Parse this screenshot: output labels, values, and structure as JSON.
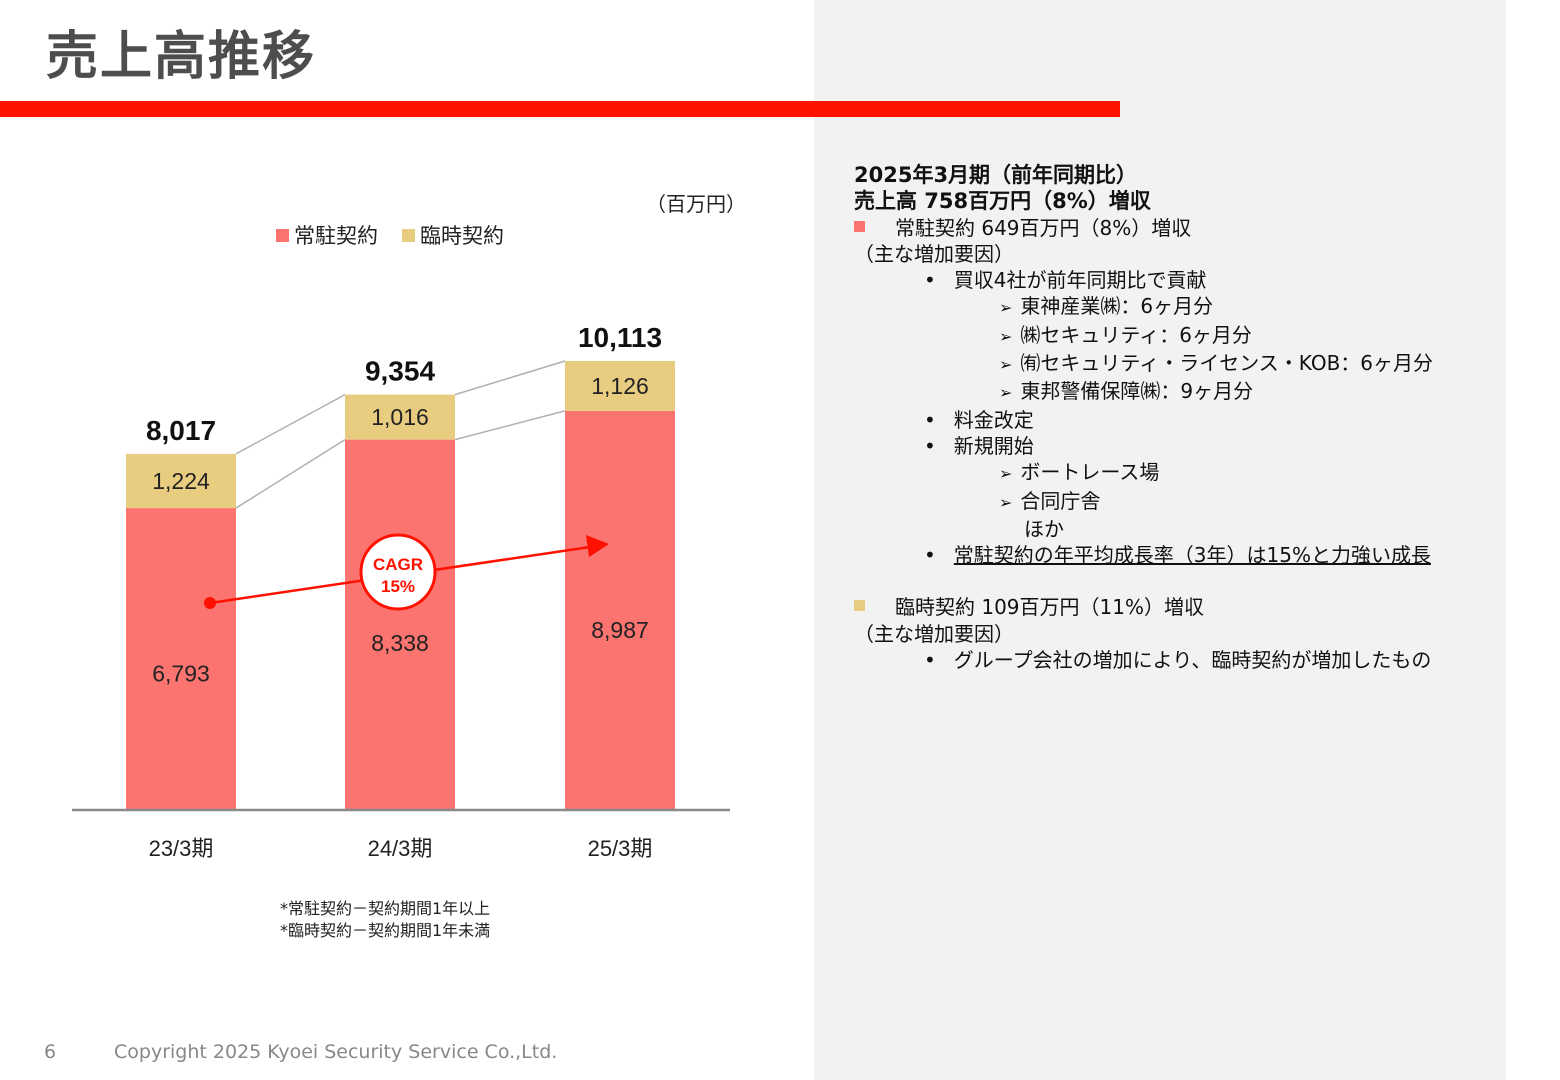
{
  "page": {
    "title": "売上高推移",
    "page_number": "6",
    "copyright": "Copyright 2025 Kyoei Security Service Co.,Ltd."
  },
  "colors": {
    "accent_red": "#ff1100",
    "regular": "#fb7470",
    "temporary": "#e8cc80",
    "panel_bg": "#f2f2f2"
  },
  "chart_data": {
    "type": "bar",
    "stacked": true,
    "unit": "（百万円）",
    "categories": [
      "23/3期",
      "24/3期",
      "25/3期"
    ],
    "series": [
      {
        "name": "常駐契約",
        "values": [
          6793,
          8338,
          8987
        ],
        "labels": [
          "6,793",
          "8,338",
          "8,987"
        ]
      },
      {
        "name": "臨時契約",
        "values": [
          1224,
          1016,
          1126
        ],
        "labels": [
          "1,224",
          "1,016",
          "1,126"
        ]
      }
    ],
    "totals": [
      8017,
      9354,
      10113
    ],
    "total_labels": [
      "8,017",
      "9,354",
      "10,113"
    ],
    "ylim": [
      0,
      11000
    ],
    "legend_position": "top",
    "annotation": {
      "line1": "CAGR",
      "line2": "15%"
    }
  },
  "footnotes": [
    "*常駐契約－契約期間1年以上",
    "*臨時契約－契約期間1年未満"
  ],
  "summary": {
    "heading1": "2025年3月期（前年同期比）",
    "heading2": "売上高  758百万円（8%）増収",
    "regular": {
      "title": "常駐契約  649百万円（8%）増収",
      "reasons_label": "（主な増加要因）",
      "b1": "買収4社が前年同期比で貢献",
      "b1_sub": [
        "東神産業㈱：6ヶ月分",
        "㈱セキュリティ：6ヶ月分",
        "㈲セキュリティ・ライセンス・KOB：6ヶ月分",
        "東邦警備保障㈱：9ヶ月分"
      ],
      "b2": "料金改定",
      "b3": "新規開始",
      "b3_sub": [
        "ボートレース場",
        "合同庁舎"
      ],
      "b3_more": "ほか",
      "b4": "常駐契約の年平均成長率（3年）は15%と力強い成長"
    },
    "temporary": {
      "title": "臨時契約  109百万円（11%）増収",
      "reasons_label": "（主な増加要因）",
      "b1": "グループ会社の増加により、臨時契約が増加したもの"
    }
  }
}
